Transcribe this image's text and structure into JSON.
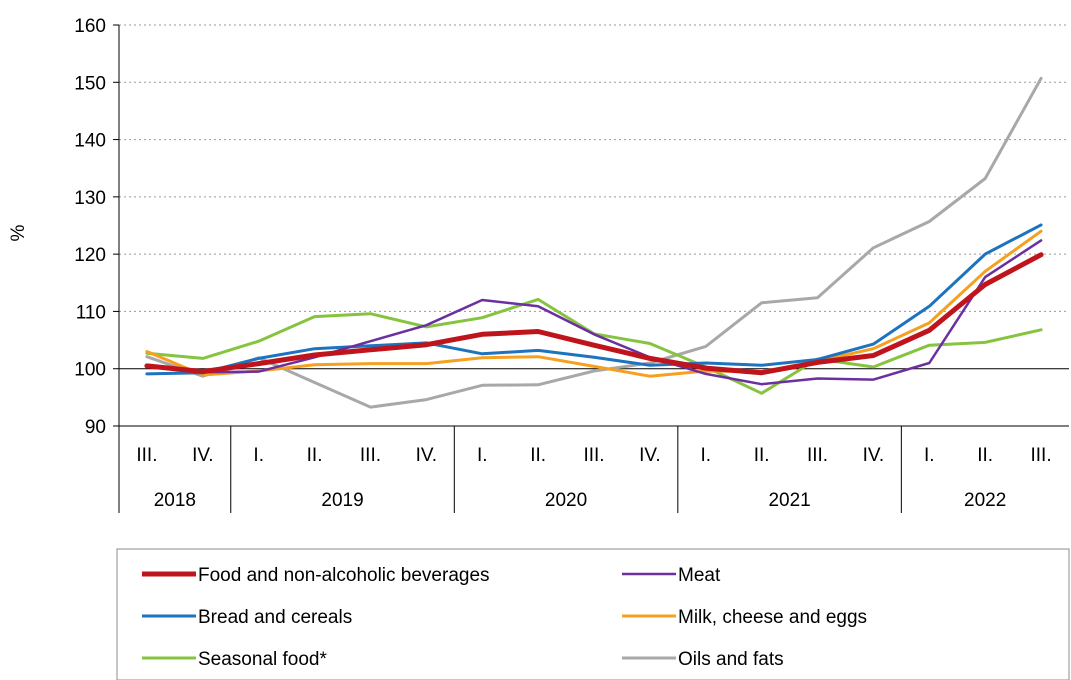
{
  "chart_data": {
    "type": "line",
    "title": "",
    "ylabel": "%",
    "xlabel": "",
    "ylim": [
      90,
      160
    ],
    "yticks": [
      90,
      100,
      110,
      120,
      130,
      140,
      150,
      160
    ],
    "baseline": 100,
    "grid": "horizontal-dotted",
    "categories": [
      "III.",
      "IV.",
      "I.",
      "II.",
      "III.",
      "IV.",
      "I.",
      "II.",
      "III.",
      "IV.",
      "I.",
      "II.",
      "III.",
      "IV.",
      "I.",
      "II.",
      "III."
    ],
    "year_groups": [
      {
        "label": "2018",
        "count": 2
      },
      {
        "label": "2019",
        "count": 4
      },
      {
        "label": "2020",
        "count": 4
      },
      {
        "label": "2021",
        "count": 4
      },
      {
        "label": "2022",
        "count": 3
      }
    ],
    "legend_position": "bottom",
    "series": [
      {
        "name": "Food and non-alcoholic beverages",
        "color": "#c0141c",
        "width": 5,
        "values": [
          100.5,
          99.5,
          100.9,
          102.4,
          103.3,
          104.2,
          106.0,
          106.5,
          104.1,
          101.8,
          100.1,
          99.3,
          101.1,
          102.3,
          106.7,
          114.7,
          119.9
        ]
      },
      {
        "name": "Meat",
        "color": "#6b2fa0",
        "width": 2.5,
        "values": [
          100.5,
          99.4,
          99.5,
          102.0,
          104.8,
          107.6,
          112.0,
          110.9,
          106.0,
          102.0,
          99.1,
          97.3,
          98.3,
          98.1,
          101.0,
          116.0,
          122.4
        ]
      },
      {
        "name": "Bread and cereals",
        "color": "#1e73be",
        "width": 3,
        "values": [
          99.1,
          99.3,
          101.8,
          103.5,
          104.0,
          104.5,
          102.6,
          103.2,
          102.0,
          100.6,
          101.0,
          100.6,
          101.6,
          104.3,
          110.9,
          120.0,
          125.1
        ]
      },
      {
        "name": "Milk, cheese and eggs",
        "color": "#f5a01e",
        "width": 3,
        "values": [
          103.0,
          98.9,
          99.6,
          100.7,
          100.9,
          100.9,
          101.9,
          102.1,
          100.4,
          98.7,
          99.6,
          99.5,
          101.3,
          103.5,
          108.0,
          117.0,
          124.0
        ]
      },
      {
        "name": "Seasonal food*",
        "color": "#86c440",
        "width": 3,
        "values": [
          102.7,
          101.8,
          104.8,
          109.1,
          109.6,
          107.3,
          108.9,
          112.1,
          106.1,
          104.4,
          100.3,
          95.7,
          101.7,
          100.3,
          104.1,
          104.6,
          106.8
        ]
      },
      {
        "name": "Oils and fats",
        "color": "#a8a8a8",
        "width": 3,
        "values": [
          102.1,
          98.7,
          101.9,
          97.6,
          93.3,
          94.6,
          97.1,
          97.2,
          99.6,
          101.0,
          103.9,
          111.5,
          112.4,
          121.1,
          125.7,
          133.2,
          150.7
        ]
      }
    ]
  }
}
